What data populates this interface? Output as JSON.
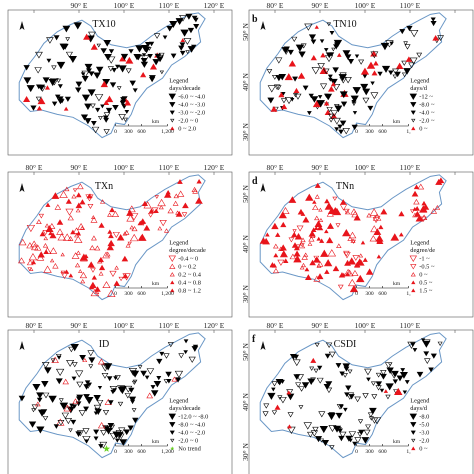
{
  "figure": {
    "background": "#ffffff",
    "outline_color": "#6a97c6",
    "marker_colors": {
      "black": "#000000",
      "red": "#e8141b",
      "gray": "#777777",
      "green": "#66d21e"
    }
  },
  "panels": [
    {
      "id": "a",
      "letter": "",
      "title": "TX10",
      "lon_labels": [
        "",
        "90° E",
        "100° E",
        "110° E",
        "120° E"
      ],
      "lat_labels": [],
      "legend": {
        "heading": "Legend",
        "unit": "days/decade",
        "items": [
          {
            "label": "-6.0 ~ -4.0",
            "shape": "down",
            "color": "black"
          },
          {
            "label": "-4.0 ~ -3.0",
            "shape": "down",
            "color": "black"
          },
          {
            "label": "-3.0 ~ -2.0",
            "shape": "down",
            "color": "black"
          },
          {
            "label": "-2.0 ~ 0",
            "shape": "down-open",
            "color": "black"
          },
          {
            "label": "0 ~ 2.0",
            "shape": "up",
            "color": "red"
          }
        ]
      },
      "scalebar": {
        "labels": [
          "0",
          "300",
          "600",
          "1,200"
        ],
        "unit": "km"
      }
    },
    {
      "id": "b",
      "letter": "b",
      "title": "TN10",
      "lon_labels": [
        "80° E",
        "90° E",
        "100° E",
        "110° E",
        ""
      ],
      "lat_labels": [
        "50° N",
        "40° N",
        "30° N"
      ],
      "legend": {
        "heading": "Legend",
        "unit": "days/d",
        "items": [
          {
            "label": "-12 ~",
            "shape": "down",
            "color": "black"
          },
          {
            "label": "-8.0 ~",
            "shape": "down",
            "color": "black"
          },
          {
            "label": "-4.0 ~",
            "shape": "down",
            "color": "black"
          },
          {
            "label": "-2.0 ~",
            "shape": "down-open",
            "color": "black"
          },
          {
            "label": "0 ~",
            "shape": "up",
            "color": "red"
          }
        ]
      },
      "scalebar": {
        "labels": [
          "0",
          "300",
          "600",
          "1,"
        ],
        "unit": "km"
      }
    },
    {
      "id": "c",
      "letter": "",
      "title": "TXn",
      "lon_labels": [
        "80° E",
        "90° E",
        "100° E",
        "110° E",
        "120° E"
      ],
      "lat_labels": [],
      "legend": {
        "heading": "Legend",
        "unit": "degree/decade",
        "items": [
          {
            "label": "-0.4 ~ 0",
            "shape": "down-open",
            "color": "red"
          },
          {
            "label": "0 ~ 0.2",
            "shape": "up-open",
            "color": "red"
          },
          {
            "label": "0.2 ~ 0.4",
            "shape": "up-open",
            "color": "red"
          },
          {
            "label": "0.4 ~ 0.8",
            "shape": "up",
            "color": "red"
          },
          {
            "label": "0.8 ~ 1.2",
            "shape": "up",
            "color": "red"
          }
        ]
      },
      "scalebar": {
        "labels": [
          "0",
          "300",
          "600",
          "1,200"
        ],
        "unit": "km"
      }
    },
    {
      "id": "d",
      "letter": "d",
      "title": "TNn",
      "lon_labels": [
        "80° E",
        "90° E",
        "100° E",
        "110° E",
        ""
      ],
      "lat_labels": [
        "50° N",
        "40° N",
        "30° N"
      ],
      "legend": {
        "heading": "Legend",
        "unit": "degree/de",
        "items": [
          {
            "label": "-1 ~",
            "shape": "down-open",
            "color": "red"
          },
          {
            "label": "-0.5 ~",
            "shape": "down-open",
            "color": "red"
          },
          {
            "label": "0 ~",
            "shape": "up-open",
            "color": "red"
          },
          {
            "label": "0.5 ~",
            "shape": "up",
            "color": "red"
          },
          {
            "label": "1.5 ~",
            "shape": "up",
            "color": "red"
          }
        ]
      },
      "scalebar": {
        "labels": [
          "0",
          "300",
          "600",
          "1,"
        ],
        "unit": "km"
      }
    },
    {
      "id": "e",
      "letter": "",
      "title": "ID",
      "lon_labels": [
        "80° E",
        "90° E",
        "100° E",
        "110° E",
        "120° E"
      ],
      "lat_labels": [],
      "legend": {
        "heading": "Legend",
        "unit": "days/decade",
        "items": [
          {
            "label": "-12.0 ~ -8.0",
            "shape": "down",
            "color": "black"
          },
          {
            "label": "-8.0 ~ -4.0",
            "shape": "down",
            "color": "black"
          },
          {
            "label": "-4.0 ~ -2.0",
            "shape": "down",
            "color": "black"
          },
          {
            "label": "-2.0 ~ 0",
            "shape": "down-open",
            "color": "black"
          },
          {
            "label": "No trend",
            "shape": "star",
            "color": "green"
          }
        ]
      },
      "scalebar": {
        "labels": [
          "0",
          "300",
          "600",
          "1,200"
        ],
        "unit": "km"
      }
    },
    {
      "id": "f",
      "letter": "f",
      "title": "CSDI",
      "lon_labels": [
        "80° E",
        "90° E",
        "100° E",
        "110° E",
        ""
      ],
      "lat_labels": [
        "50° N",
        "40° N",
        "30° N"
      ],
      "legend": {
        "heading": "Legend",
        "unit": "days/d",
        "items": [
          {
            "label": "-8.0",
            "shape": "down",
            "color": "black"
          },
          {
            "label": "-5.0",
            "shape": "down",
            "color": "black"
          },
          {
            "label": "-3.0",
            "shape": "down",
            "color": "black"
          },
          {
            "label": "-2.0",
            "shape": "down-open",
            "color": "black"
          },
          {
            "label": "0 ~",
            "shape": "up",
            "color": "red"
          }
        ]
      },
      "scalebar": {
        "labels": [
          "0",
          "300",
          "600",
          "1,"
        ],
        "unit": "km"
      }
    }
  ]
}
